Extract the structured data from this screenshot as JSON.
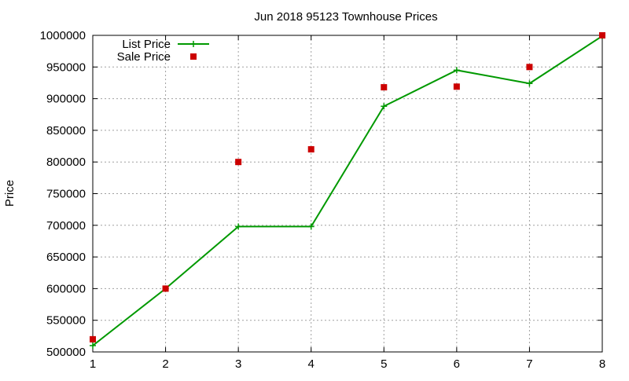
{
  "chart_data": {
    "type": "line",
    "title": "Jun 2018 95123 Townhouse Prices",
    "xlabel": "",
    "ylabel": "Price",
    "xlim": [
      1,
      8
    ],
    "ylim": [
      500000,
      1000000
    ],
    "x_ticks": [
      1,
      2,
      3,
      4,
      5,
      6,
      7,
      8
    ],
    "y_ticks": [
      500000,
      550000,
      600000,
      650000,
      700000,
      750000,
      800000,
      850000,
      900000,
      950000,
      1000000
    ],
    "grid": true,
    "legend_position": "top-left",
    "series": [
      {
        "name": "List Price",
        "style": "line-with-plus-markers",
        "color": "#009900",
        "x": [
          1,
          2,
          3,
          4,
          5,
          6,
          7,
          8
        ],
        "values": [
          510000,
          600000,
          698000,
          698000,
          888000,
          945000,
          924000,
          999000
        ]
      },
      {
        "name": "Sale Price",
        "style": "square-points",
        "color": "#cc0000",
        "x": [
          1,
          2,
          3,
          4,
          5,
          6,
          7,
          8
        ],
        "values": [
          520000,
          600000,
          800000,
          820000,
          918000,
          919000,
          950000,
          1000000
        ]
      }
    ]
  }
}
